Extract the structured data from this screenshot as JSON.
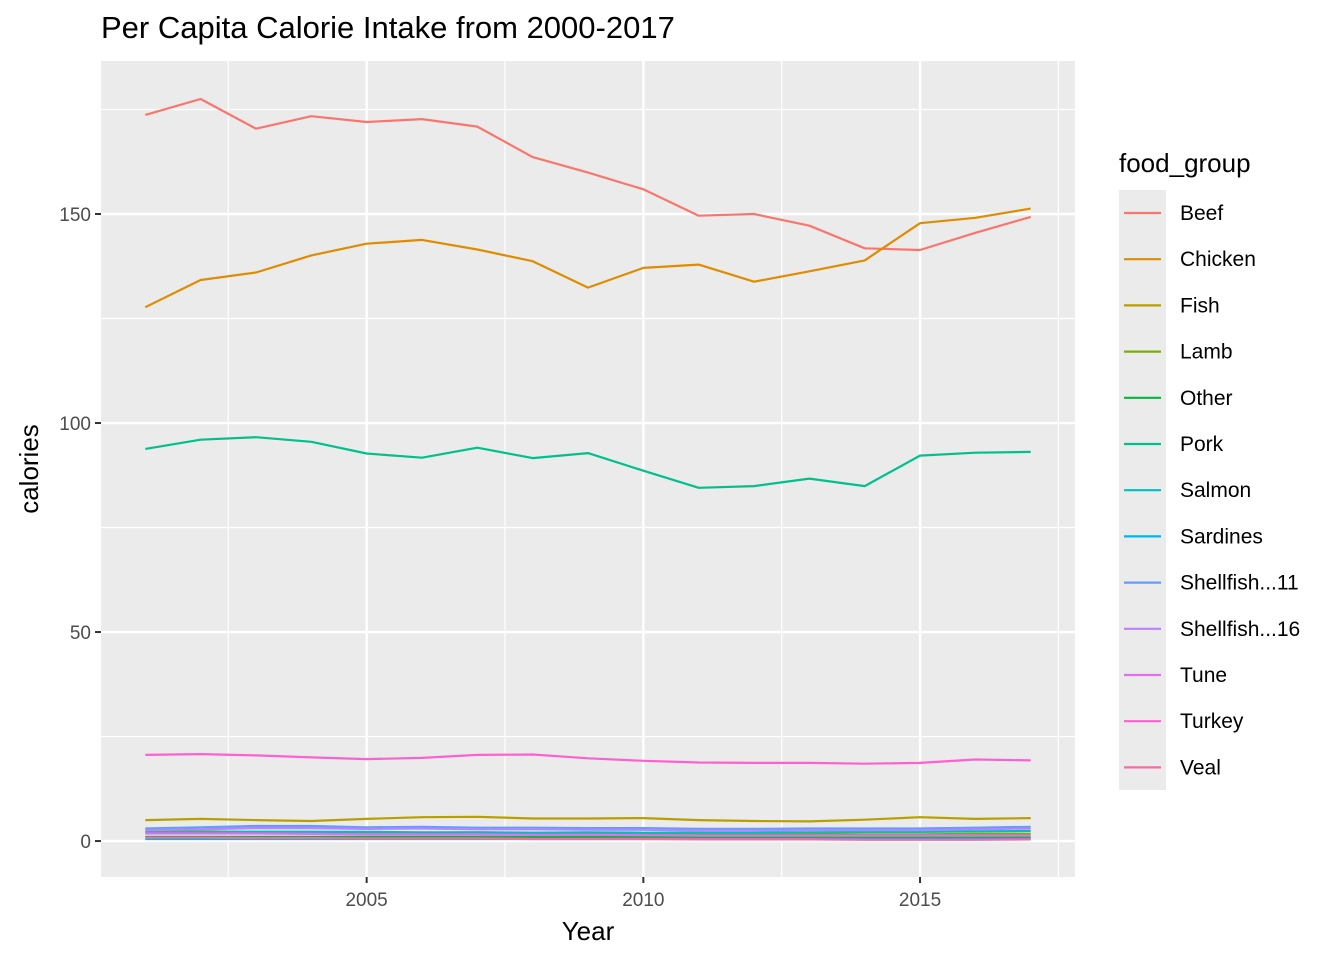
{
  "chart_data": {
    "type": "line",
    "title": "Per Capita Calorie Intake from 2000-2017",
    "xlabel": "Year",
    "ylabel": "calories",
    "xlim": [
      2000.2,
      2017.8
    ],
    "ylim": [
      -8.6,
      186.6
    ],
    "x_ticks": [
      2005,
      2010,
      2015
    ],
    "y_ticks": [
      0,
      50,
      100,
      150
    ],
    "x_minor": [
      2002.5,
      2007.5,
      2012.5,
      2017.5
    ],
    "y_minor": [
      25,
      75,
      125,
      175
    ],
    "grid": true,
    "legend_title": "food_group",
    "legend_position": "right",
    "x": [
      2001,
      2002,
      2003,
      2004,
      2005,
      2006,
      2007,
      2008,
      2009,
      2010,
      2011,
      2012,
      2013,
      2014,
      2015,
      2016,
      2017
    ],
    "series": [
      {
        "name": "Beef",
        "color": "#F8766D",
        "values": [
          173.7,
          177.5,
          170.4,
          173.4,
          172.0,
          172.7,
          170.9,
          163.6,
          159.9,
          155.9,
          149.6,
          150.0,
          147.2,
          141.8,
          141.4,
          145.5,
          149.3
        ]
      },
      {
        "name": "Chicken",
        "color": "#DE8C00",
        "values": [
          127.7,
          134.2,
          136.0,
          140.1,
          142.9,
          143.8,
          141.5,
          138.7,
          132.4,
          137.1,
          137.9,
          133.8,
          136.3,
          138.9,
          147.8,
          149.1,
          151.3
        ]
      },
      {
        "name": "Fish",
        "color": "#B79F00",
        "values": [
          5.0,
          5.3,
          5.0,
          4.8,
          5.3,
          5.7,
          5.8,
          5.4,
          5.4,
          5.5,
          5.0,
          4.8,
          4.7,
          5.1,
          5.7,
          5.3,
          5.5
        ]
      },
      {
        "name": "Lamb",
        "color": "#7CAE00",
        "values": [
          2.3,
          2.3,
          2.2,
          2.2,
          2.0,
          2.0,
          2.1,
          1.9,
          1.8,
          1.7,
          1.6,
          1.6,
          1.7,
          1.6,
          1.6,
          1.7,
          1.7
        ]
      },
      {
        "name": "Other",
        "color": "#00BA38",
        "values": [
          1.0,
          1.0,
          1.0,
          1.0,
          1.0,
          1.0,
          1.0,
          1.0,
          1.0,
          1.0,
          1.0,
          1.0,
          1.0,
          1.0,
          1.0,
          1.0,
          1.0
        ]
      },
      {
        "name": "Pork",
        "color": "#00C08B",
        "values": [
          93.8,
          96.0,
          96.6,
          95.5,
          92.7,
          91.7,
          94.1,
          91.6,
          92.8,
          88.6,
          84.5,
          84.9,
          86.7,
          84.9,
          92.2,
          92.9,
          93.1
        ]
      },
      {
        "name": "Salmon",
        "color": "#00BFC4",
        "values": [
          2.0,
          2.1,
          2.2,
          2.2,
          2.2,
          2.1,
          2.1,
          2.0,
          2.1,
          2.0,
          2.0,
          2.0,
          2.1,
          2.2,
          2.2,
          2.3,
          2.4
        ]
      },
      {
        "name": "Sardines",
        "color": "#00B4F0",
        "values": [
          0.5,
          0.5,
          0.5,
          0.5,
          0.5,
          0.5,
          0.5,
          0.5,
          0.5,
          0.5,
          0.5,
          0.5,
          0.5,
          0.5,
          0.5,
          0.5,
          0.5
        ]
      },
      {
        "name": "Shellfish...11",
        "color": "#619CFF",
        "values": [
          3.0,
          3.3,
          3.6,
          3.6,
          3.3,
          3.4,
          3.2,
          3.2,
          3.1,
          3.1,
          2.9,
          2.9,
          3.0,
          3.0,
          3.0,
          3.2,
          3.4
        ]
      },
      {
        "name": "Shellfish...16",
        "color": "#B983FF",
        "values": [
          2.6,
          2.8,
          3.1,
          3.1,
          2.9,
          3.0,
          2.8,
          2.8,
          2.7,
          2.7,
          2.5,
          2.5,
          2.6,
          2.6,
          2.6,
          2.8,
          3.0
        ]
      },
      {
        "name": "Tune",
        "color": "#E76BF3",
        "values": [
          1.8,
          1.8,
          1.8,
          1.7,
          1.6,
          1.6,
          1.6,
          1.5,
          1.5,
          1.4,
          1.3,
          1.3,
          1.3,
          1.3,
          1.3,
          1.3,
          1.3
        ]
      },
      {
        "name": "Turkey",
        "color": "#FD61D1",
        "values": [
          20.6,
          20.8,
          20.5,
          20.0,
          19.6,
          19.9,
          20.6,
          20.7,
          19.8,
          19.2,
          18.8,
          18.7,
          18.7,
          18.5,
          18.7,
          19.5,
          19.3
        ]
      },
      {
        "name": "Veal",
        "color": "#FF67A4",
        "values": [
          0.8,
          0.8,
          0.7,
          0.7,
          0.6,
          0.6,
          0.6,
          0.5,
          0.5,
          0.5,
          0.4,
          0.4,
          0.4,
          0.3,
          0.3,
          0.3,
          0.4
        ]
      }
    ]
  }
}
